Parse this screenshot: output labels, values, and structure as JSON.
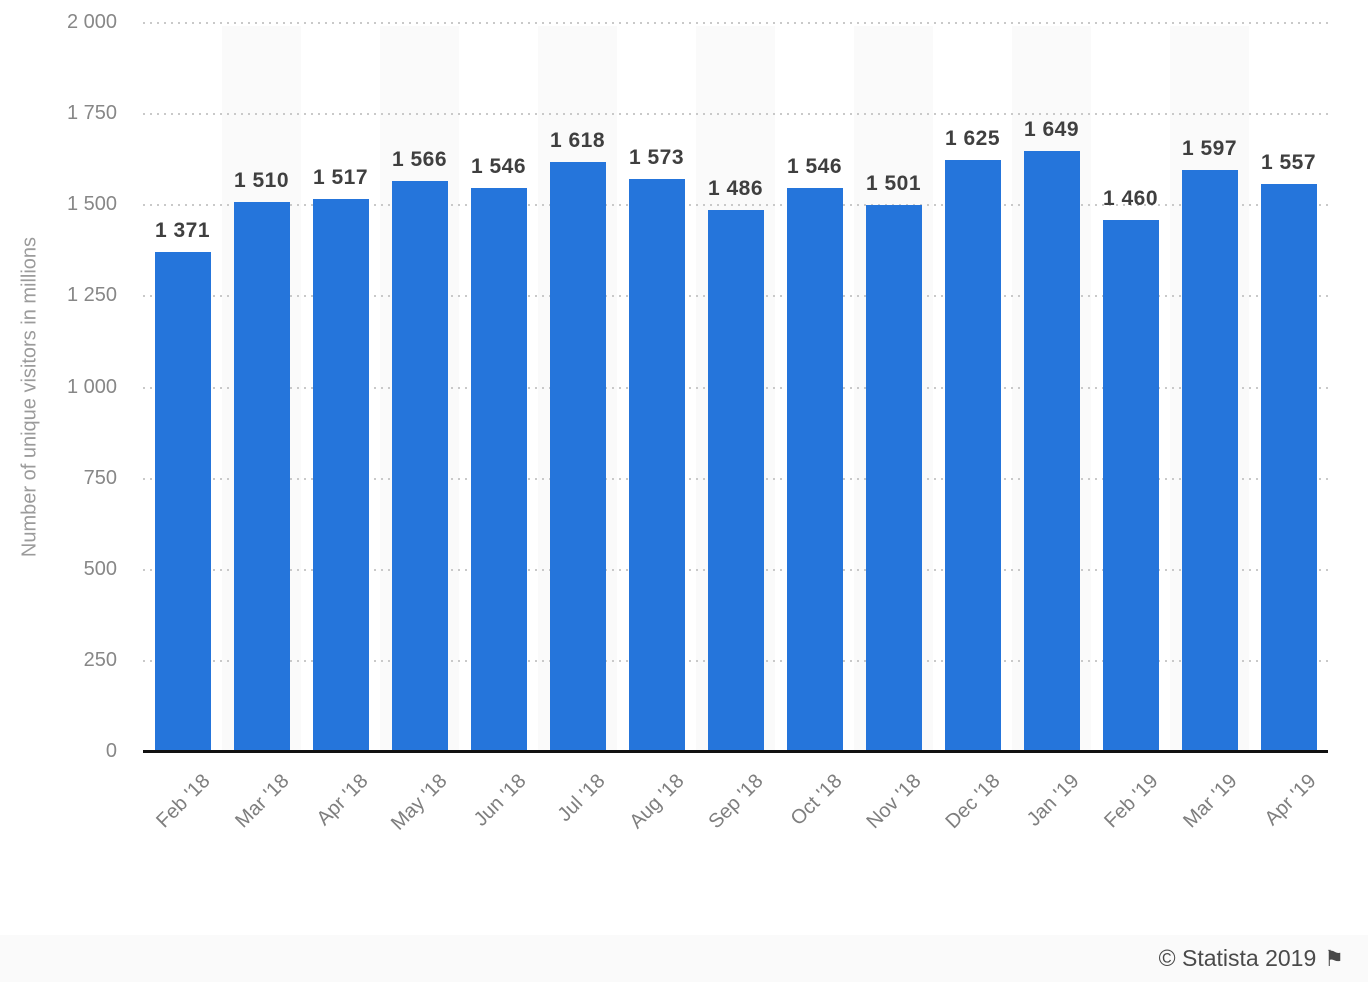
{
  "chart_data": {
    "type": "bar",
    "categories": [
      "Feb '18",
      "Mar '18",
      "Apr '18",
      "May '18",
      "Jun '18",
      "Jul '18",
      "Aug '18",
      "Sep '18",
      "Oct '18",
      "Nov '18",
      "Dec '18",
      "Jan '19",
      "Feb '19",
      "Mar '19",
      "Apr '19"
    ],
    "values": [
      1371,
      1510,
      1517,
      1566,
      1546,
      1618,
      1573,
      1486,
      1546,
      1501,
      1625,
      1649,
      1460,
      1597,
      1557
    ],
    "value_labels": [
      "1 371",
      "1 510",
      "1 517",
      "1 566",
      "1 546",
      "1 618",
      "1 573",
      "1 486",
      "1 546",
      "1 501",
      "1 625",
      "1 649",
      "1 460",
      "1 597",
      "1 557"
    ],
    "title": "",
    "xlabel": "",
    "ylabel": "Number of unique visitors in millions",
    "ylim": [
      0,
      2000
    ],
    "ytick_interval": 250,
    "ytick_labels": [
      "0",
      "250",
      "500",
      "750",
      "1 000",
      "1 250",
      "1 500",
      "1 750",
      "2 000"
    ],
    "grid": "horizontal-dotted",
    "legend": "none",
    "bar_color": "#2575DB",
    "band_color": "#fafafa",
    "alternating_bands": true
  },
  "footer": {
    "attribution": "© Statista 2019",
    "flag_icon": "⚑"
  }
}
